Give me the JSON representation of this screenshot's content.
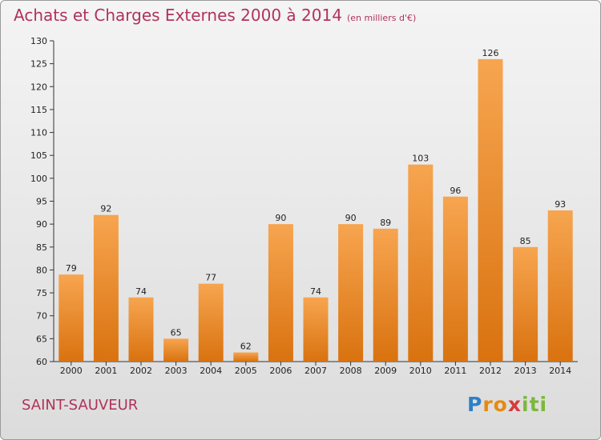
{
  "chart_data": {
    "type": "bar",
    "title": "Achats et Charges Externes 2000 à 2014",
    "subtitle": "(en milliers d'€)",
    "categories": [
      "2000",
      "2001",
      "2002",
      "2003",
      "2004",
      "2005",
      "2006",
      "2007",
      "2008",
      "2009",
      "2010",
      "2011",
      "2012",
      "2013",
      "2014"
    ],
    "values": [
      79,
      92,
      74,
      65,
      77,
      62,
      90,
      74,
      90,
      89,
      103,
      96,
      126,
      85,
      93
    ],
    "ylim": [
      60,
      130
    ],
    "yticks": [
      60,
      65,
      70,
      75,
      80,
      85,
      90,
      95,
      100,
      105,
      110,
      115,
      120,
      125,
      130
    ],
    "xlabel": "",
    "ylabel": "",
    "grid": false,
    "data_labels": true,
    "colors": {
      "bar_light": "#f7a550",
      "bar_dark": "#d9720f",
      "axis": "#333333"
    }
  },
  "footer": {
    "commune": "SAINT-SAUVEUR",
    "logo_letters": [
      {
        "ch": "P",
        "color": "#2f7fc8"
      },
      {
        "ch": "r",
        "color": "#e58a12"
      },
      {
        "ch": "o",
        "color": "#e58a12"
      },
      {
        "ch": "x",
        "color": "#d83a3a"
      },
      {
        "ch": "i",
        "color": "#7cb83a"
      },
      {
        "ch": "t",
        "color": "#7cb83a"
      },
      {
        "ch": "i",
        "color": "#7cb83a"
      }
    ]
  }
}
